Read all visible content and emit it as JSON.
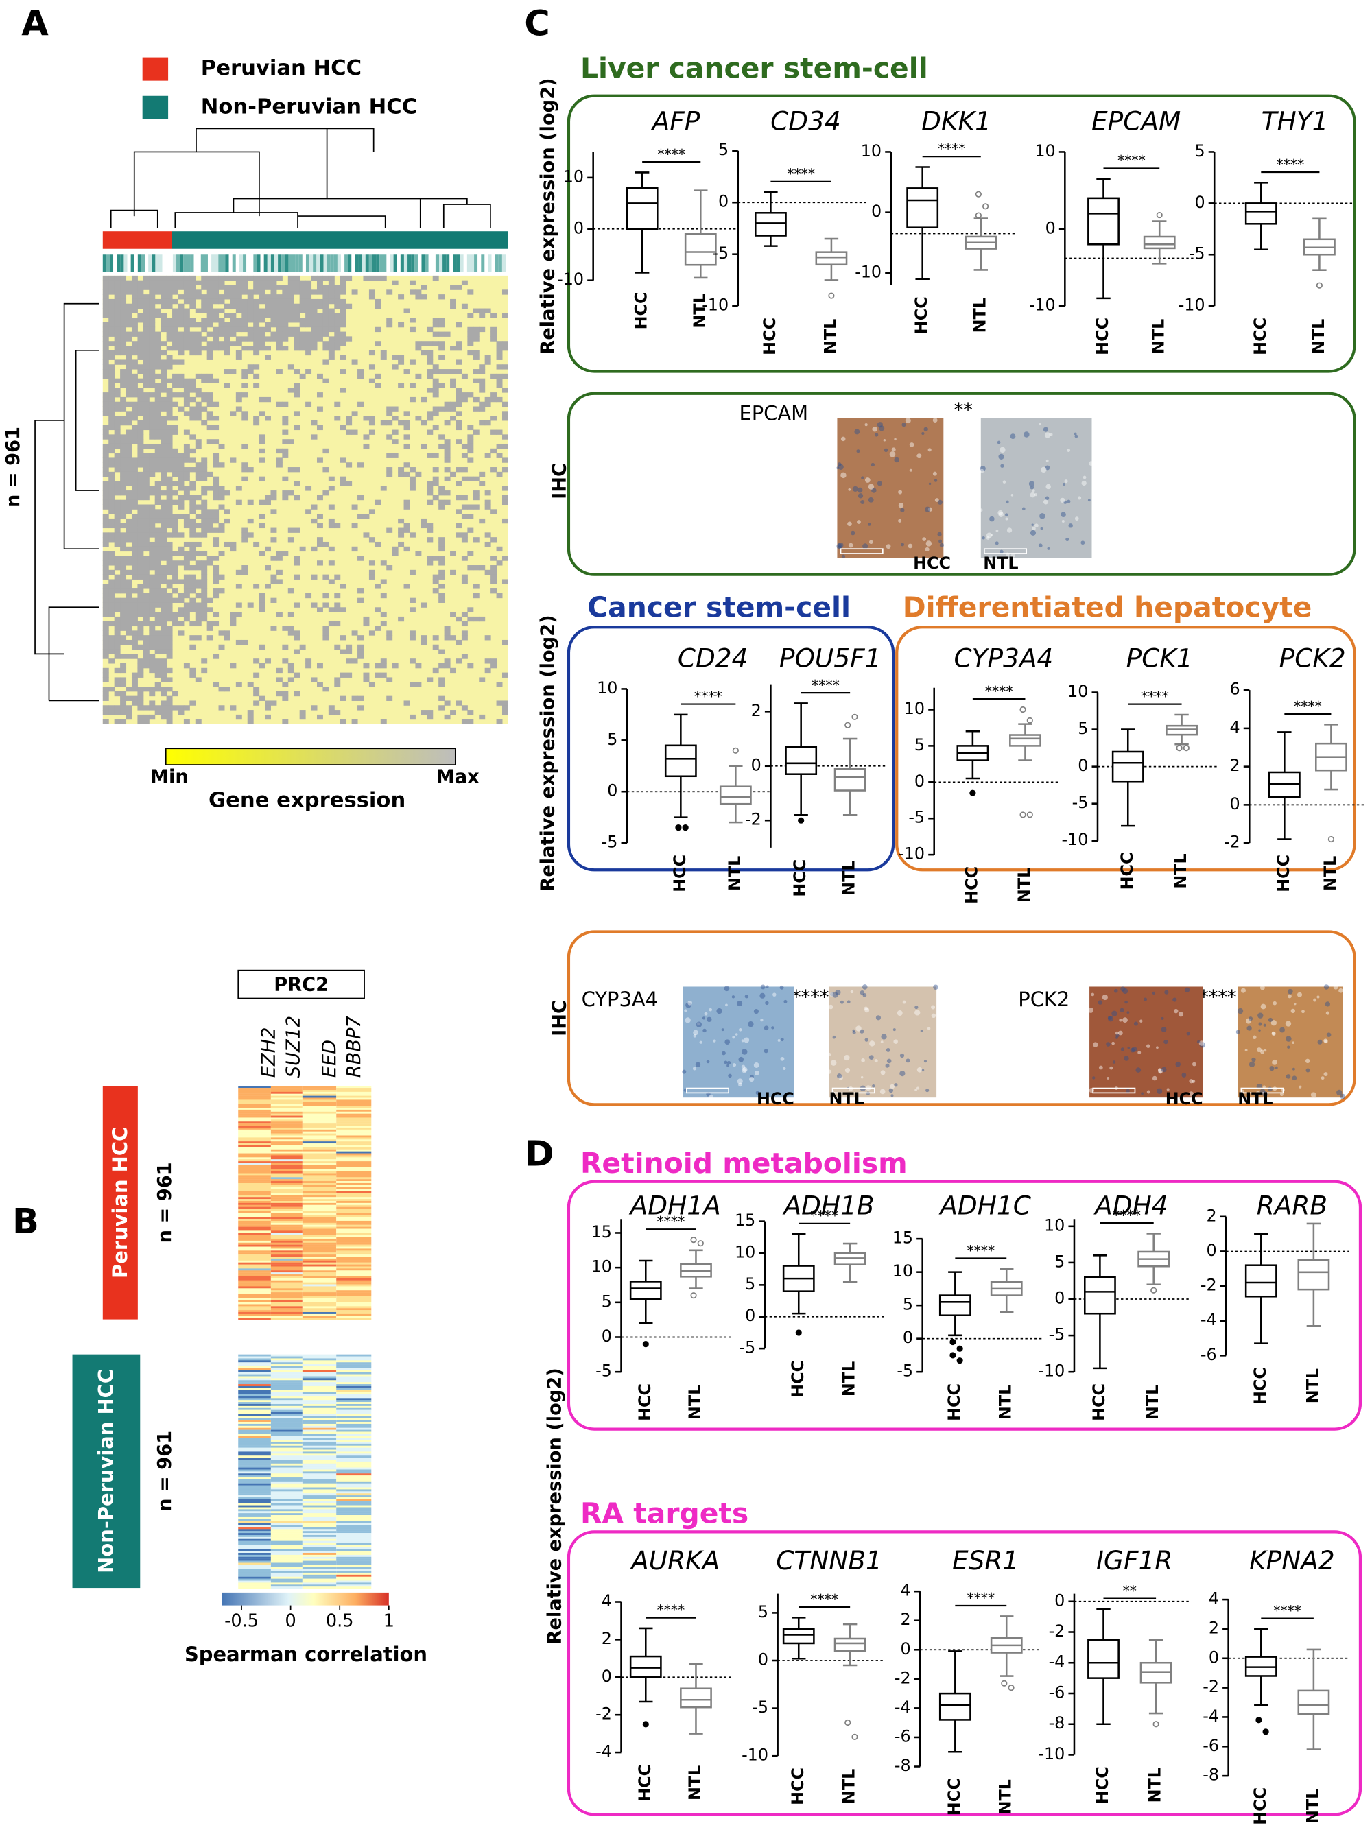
{
  "panel_labels": [
    "A",
    "B",
    "C",
    "D"
  ],
  "panel_a": {
    "legend": [
      "Peruvian HCC",
      "Non-Peruvian HCC"
    ],
    "legend_colors": [
      "#e8321e",
      "#137a73"
    ],
    "row_label": "n = 961",
    "colorbar_min": "Min",
    "colorbar_max": "Max",
    "colorbar_title": "Gene expression"
  },
  "panel_b": {
    "complex": "PRC2",
    "genes": [
      "EZH2",
      "SUZ12",
      "EED",
      "RBBP7"
    ],
    "groups": [
      "Peruvian HCC",
      "Non-Peruvian HCC"
    ],
    "row_labels": [
      "n = 961",
      "n = 961"
    ],
    "colorbar": {
      "lim": [
        -0.7,
        1
      ],
      "ticks": [
        -0.5,
        0,
        0.5,
        1
      ]
    },
    "colorbar_title": "Spearman correlation"
  },
  "panel_c": {
    "groups": [
      "Liver cancer stem-cell",
      "Cancer stem-cell",
      "Differentiated hepatocyte"
    ],
    "y_label": "Relative expression (log2)",
    "ihc_label": "IHC",
    "ihc": [
      {
        "marker": "EPCAM",
        "significance": "**",
        "labels": [
          "HCC",
          "NTL"
        ]
      },
      {
        "marker": "CYP3A4",
        "significance": "****",
        "labels": [
          "HCC",
          "NTL"
        ]
      },
      {
        "marker": "PCK2",
        "significance": "****",
        "labels": [
          "HCC",
          "NTL"
        ]
      }
    ]
  },
  "panel_d": {
    "groups": [
      "Retinoid metabolism",
      "RA targets"
    ],
    "y_label": "Relative expression (log2)"
  },
  "chart_data": [
    {
      "type": "box",
      "title": "AFP",
      "significance": "****",
      "categories": [
        "HCC",
        "NTL"
      ],
      "colors": [
        "#000000",
        "#808080"
      ],
      "ylim": [
        -10,
        15
      ],
      "yticks": [
        -10,
        0,
        10
      ],
      "reference_line": 0,
      "boxes": [
        {
          "min": -8.5,
          "q1": 0,
          "median": 5,
          "q3": 8,
          "max": 11,
          "outliers": []
        },
        {
          "min": -9.5,
          "q1": -7,
          "median": -4.5,
          "q3": -1,
          "max": 7.5,
          "outliers": []
        }
      ]
    },
    {
      "type": "box",
      "title": "CD34",
      "significance": "****",
      "categories": [
        "HCC",
        "NTL"
      ],
      "colors": [
        "#000000",
        "#808080"
      ],
      "ylim": [
        -10,
        5
      ],
      "yticks": [
        -10,
        -5,
        0,
        5
      ],
      "reference_line": 0,
      "boxes": [
        {
          "min": -4.2,
          "q1": -3.2,
          "median": -2,
          "q3": -1,
          "max": 1,
          "outliers": []
        },
        {
          "min": -7.5,
          "q1": -6,
          "median": -5.3,
          "q3": -4.8,
          "max": -3.5,
          "outliers": [
            -9
          ]
        }
      ]
    },
    {
      "type": "box",
      "title": "DKK1",
      "significance": "****",
      "categories": [
        "HCC",
        "NTL"
      ],
      "colors": [
        "#000000",
        "#808080"
      ],
      "ylim": [
        -12,
        10
      ],
      "yticks": [
        -10,
        0,
        10
      ],
      "reference_line": -3.5,
      "boxes": [
        {
          "min": -11,
          "q1": -2.5,
          "median": 2,
          "q3": 4,
          "max": 7.5,
          "outliers": []
        },
        {
          "min": -9.5,
          "q1": -6,
          "median": -5,
          "q3": -4,
          "max": -1,
          "outliers": [
            3,
            1,
            -0.5
          ]
        }
      ]
    },
    {
      "type": "box",
      "title": "EPCAM",
      "significance": "****",
      "categories": [
        "HCC",
        "NTL"
      ],
      "colors": [
        "#000000",
        "#808080"
      ],
      "ylim": [
        -10,
        10
      ],
      "yticks": [
        -10,
        0,
        10
      ],
      "reference_line": -3.8,
      "boxes": [
        {
          "min": -9,
          "q1": -2,
          "median": 2,
          "q3": 4,
          "max": 6.5,
          "outliers": []
        },
        {
          "min": -4.5,
          "q1": -2.5,
          "median": -2,
          "q3": -1,
          "max": 1,
          "outliers": [
            1.8
          ]
        }
      ]
    },
    {
      "type": "box",
      "title": "THY1",
      "significance": "****",
      "categories": [
        "HCC",
        "NTL"
      ],
      "colors": [
        "#000000",
        "#808080"
      ],
      "ylim": [
        -10,
        5
      ],
      "yticks": [
        -10,
        -5,
        0,
        5
      ],
      "reference_line": 0,
      "boxes": [
        {
          "min": -4.5,
          "q1": -2,
          "median": -0.8,
          "q3": 0,
          "max": 2,
          "outliers": []
        },
        {
          "min": -6.5,
          "q1": -5,
          "median": -4.3,
          "q3": -3.5,
          "max": -1.5,
          "outliers": [
            -8
          ]
        }
      ]
    },
    {
      "type": "box",
      "title": "CD24",
      "significance": "****",
      "categories": [
        "HCC",
        "NTL"
      ],
      "colors": [
        "#000000",
        "#808080"
      ],
      "ylim": [
        -5,
        10
      ],
      "yticks": [
        -5,
        0,
        5,
        10
      ],
      "reference_line": 0,
      "boxes": [
        {
          "min": -2.5,
          "q1": 1.5,
          "median": 3.2,
          "q3": 4.5,
          "max": 7.5,
          "outliers": [
            -3.5,
            -3.5
          ]
        },
        {
          "min": -3,
          "q1": -1.2,
          "median": -0.5,
          "q3": 0.5,
          "max": 2.5,
          "outliers": [
            4
          ]
        }
      ]
    },
    {
      "type": "box",
      "title": "POU5F1",
      "significance": "****",
      "categories": [
        "HCC",
        "NTL"
      ],
      "colors": [
        "#000000",
        "#808080"
      ],
      "ylim": [
        -3,
        3
      ],
      "yticks": [
        -2,
        0,
        2
      ],
      "reference_line": 0,
      "boxes": [
        {
          "min": -1.8,
          "q1": -0.3,
          "median": 0.1,
          "q3": 0.7,
          "max": 2.3,
          "outliers": [
            -2
          ]
        },
        {
          "min": -1.8,
          "q1": -0.9,
          "median": -0.4,
          "q3": -0.1,
          "max": 1,
          "outliers": [
            1.5,
            1.8
          ]
        }
      ]
    },
    {
      "type": "box",
      "title": "CYP3A4",
      "significance": "****",
      "categories": [
        "HCC",
        "NTL"
      ],
      "colors": [
        "#000000",
        "#808080"
      ],
      "ylim": [
        -10,
        13
      ],
      "yticks": [
        -10,
        -5,
        0,
        5,
        10
      ],
      "reference_line": 0,
      "boxes": [
        {
          "min": 0.5,
          "q1": 3,
          "median": 4,
          "q3": 5,
          "max": 7,
          "outliers": [
            -1.5
          ]
        },
        {
          "min": 3,
          "q1": 5,
          "median": 6,
          "q3": 6.5,
          "max": 8,
          "outliers": [
            10,
            8.5,
            -4.5,
            -4.5
          ]
        }
      ]
    },
    {
      "type": "box",
      "title": "PCK1",
      "significance": "****",
      "categories": [
        "HCC",
        "NTL"
      ],
      "colors": [
        "#000000",
        "#808080"
      ],
      "ylim": [
        -10,
        10
      ],
      "yticks": [
        -10,
        -5,
        0,
        5,
        10
      ],
      "reference_line": 0,
      "boxes": [
        {
          "min": -8,
          "q1": -2,
          "median": 0.5,
          "q3": 2,
          "max": 5,
          "outliers": []
        },
        {
          "min": 3,
          "q1": 4.3,
          "median": 5,
          "q3": 5.5,
          "max": 7,
          "outliers": [
            2.5,
            2.5,
            2.5
          ]
        }
      ]
    },
    {
      "type": "box",
      "title": "PCK2",
      "significance": "****",
      "categories": [
        "HCC",
        "NTL"
      ],
      "colors": [
        "#000000",
        "#808080"
      ],
      "ylim": [
        -2,
        6
      ],
      "yticks": [
        -2,
        0,
        2,
        4,
        6
      ],
      "reference_line": 0,
      "boxes": [
        {
          "min": -1.8,
          "q1": 0.4,
          "median": 1.1,
          "q3": 1.7,
          "max": 3.8,
          "outliers": []
        },
        {
          "min": 0.8,
          "q1": 1.8,
          "median": 2.5,
          "q3": 3.2,
          "max": 4.2,
          "outliers": [
            -1.8
          ]
        }
      ]
    },
    {
      "type": "box",
      "title": "ADH1A",
      "significance": "****",
      "categories": [
        "HCC",
        "NTL"
      ],
      "colors": [
        "#000000",
        "#808080"
      ],
      "ylim": [
        -5,
        17
      ],
      "yticks": [
        -5,
        0,
        5,
        10,
        15
      ],
      "reference_line": 0,
      "boxes": [
        {
          "min": 2,
          "q1": 5.5,
          "median": 7,
          "q3": 8,
          "max": 11,
          "outliers": [
            -1
          ]
        },
        {
          "min": 7,
          "q1": 8.7,
          "median": 9.5,
          "q3": 10.5,
          "max": 12.5,
          "outliers": [
            14,
            13.5,
            6
          ]
        }
      ]
    },
    {
      "type": "box",
      "title": "ADH1B",
      "significance": "****",
      "categories": [
        "HCC",
        "NTL"
      ],
      "colors": [
        "#000000",
        "#808080"
      ],
      "ylim": [
        -5,
        15
      ],
      "yticks": [
        -5,
        0,
        5,
        10,
        15
      ],
      "reference_line": 0,
      "boxes": [
        {
          "min": 0.5,
          "q1": 4,
          "median": 6,
          "q3": 8,
          "max": 13,
          "outliers": [
            -2.5
          ]
        },
        {
          "min": 5.5,
          "q1": 8.2,
          "median": 9.2,
          "q3": 10,
          "max": 11.5,
          "outliers": []
        }
      ]
    },
    {
      "type": "box",
      "title": "ADH1C",
      "significance": "****",
      "categories": [
        "HCC",
        "NTL"
      ],
      "colors": [
        "#000000",
        "#808080"
      ],
      "ylim": [
        -5,
        15
      ],
      "yticks": [
        -5,
        0,
        5,
        10,
        15
      ],
      "reference_line": 0,
      "boxes": [
        {
          "min": 0.5,
          "q1": 3.5,
          "median": 5.5,
          "q3": 6.5,
          "max": 10,
          "outliers": [
            -0.5,
            -1.5,
            -2.5,
            -3.3
          ]
        },
        {
          "min": 4,
          "q1": 6.5,
          "median": 7.5,
          "q3": 8.5,
          "max": 10.5,
          "outliers": []
        }
      ]
    },
    {
      "type": "box",
      "title": "ADH4",
      "significance": "****",
      "categories": [
        "HCC",
        "NTL"
      ],
      "colors": [
        "#000000",
        "#808080"
      ],
      "ylim": [
        -10,
        11
      ],
      "yticks": [
        -10,
        -5,
        0,
        5,
        10
      ],
      "reference_line": 0,
      "boxes": [
        {
          "min": -9.5,
          "q1": -2,
          "median": 1,
          "q3": 3,
          "max": 6,
          "outliers": []
        },
        {
          "min": 2,
          "q1": 4.5,
          "median": 5.5,
          "q3": 6.5,
          "max": 9,
          "outliers": [
            1.2
          ]
        }
      ]
    },
    {
      "type": "box",
      "title": "RARB",
      "categories": [
        "HCC",
        "NTL"
      ],
      "colors": [
        "#000000",
        "#808080"
      ],
      "ylim": [
        -6,
        2
      ],
      "yticks": [
        -6,
        -4,
        -2,
        0,
        2
      ],
      "reference_line": 0,
      "boxes": [
        {
          "min": -5.3,
          "q1": -2.6,
          "median": -1.8,
          "q3": -0.8,
          "max": 1,
          "outliers": []
        },
        {
          "min": -4.3,
          "q1": -2.2,
          "median": -1.2,
          "q3": -0.5,
          "max": 1.6,
          "outliers": []
        }
      ]
    },
    {
      "type": "box",
      "title": "AURKA",
      "significance": "****",
      "categories": [
        "HCC",
        "NTL"
      ],
      "colors": [
        "#000000",
        "#808080"
      ],
      "ylim": [
        -4,
        4
      ],
      "yticks": [
        -4,
        -2,
        0,
        2,
        4
      ],
      "reference_line": 0,
      "boxes": [
        {
          "min": -1.3,
          "q1": 0,
          "median": 0.5,
          "q3": 1.1,
          "max": 2.6,
          "outliers": [
            -2.5
          ]
        },
        {
          "min": -3,
          "q1": -1.6,
          "median": -1.2,
          "q3": -0.6,
          "max": 0.7,
          "outliers": []
        }
      ]
    },
    {
      "type": "box",
      "title": "CTNNB1",
      "significance": "****",
      "categories": [
        "HCC",
        "NTL"
      ],
      "colors": [
        "#000000",
        "#808080"
      ],
      "ylim": [
        -10,
        7
      ],
      "yticks": [
        -10,
        -5,
        0,
        5
      ],
      "reference_line": 0,
      "boxes": [
        {
          "min": 0.2,
          "q1": 1.8,
          "median": 2.7,
          "q3": 3.3,
          "max": 4.5,
          "outliers": []
        },
        {
          "min": -0.5,
          "q1": 1,
          "median": 1.8,
          "q3": 2.3,
          "max": 3.8,
          "outliers": [
            -6.5,
            -8
          ]
        }
      ]
    },
    {
      "type": "box",
      "title": "ESR1",
      "significance": "****",
      "categories": [
        "HCC",
        "NTL"
      ],
      "colors": [
        "#000000",
        "#808080"
      ],
      "ylim": [
        -8,
        4
      ],
      "yticks": [
        -8,
        -6,
        -4,
        -2,
        0,
        2,
        4
      ],
      "reference_line": 0,
      "boxes": [
        {
          "min": -7,
          "q1": -4.8,
          "median": -3.8,
          "q3": -3,
          "max": -0.1,
          "outliers": []
        },
        {
          "min": -1.8,
          "q1": -0.2,
          "median": 0.3,
          "q3": 0.8,
          "max": 2.3,
          "outliers": [
            -2.3,
            -2.6
          ]
        }
      ]
    },
    {
      "type": "box",
      "title": "IGF1R",
      "significance": "**",
      "categories": [
        "HCC",
        "NTL"
      ],
      "colors": [
        "#000000",
        "#808080"
      ],
      "ylim": [
        -10,
        0.5
      ],
      "yticks": [
        -10,
        -8,
        -6,
        -4,
        -2,
        0
      ],
      "reference_line": 0,
      "boxes": [
        {
          "min": -8,
          "q1": -5,
          "median": -4,
          "q3": -2.5,
          "max": -0.5,
          "outliers": []
        },
        {
          "min": -7.3,
          "q1": -5.3,
          "median": -4.6,
          "q3": -4,
          "max": -2.5,
          "outliers": [
            -8
          ]
        }
      ]
    },
    {
      "type": "box",
      "title": "KPNA2",
      "significance": "****",
      "categories": [
        "HCC",
        "NTL"
      ],
      "colors": [
        "#000000",
        "#808080"
      ],
      "ylim": [
        -8,
        4
      ],
      "yticks": [
        -8,
        -6,
        -4,
        -2,
        0,
        2,
        4
      ],
      "reference_line": 0,
      "boxes": [
        {
          "min": -3.2,
          "q1": -1.2,
          "median": -0.6,
          "q3": 0.1,
          "max": 2,
          "outliers": [
            -4.2,
            -5
          ]
        },
        {
          "min": -6.2,
          "q1": -3.8,
          "median": -3.2,
          "q3": -2.2,
          "max": 0.6,
          "outliers": []
        }
      ]
    }
  ]
}
